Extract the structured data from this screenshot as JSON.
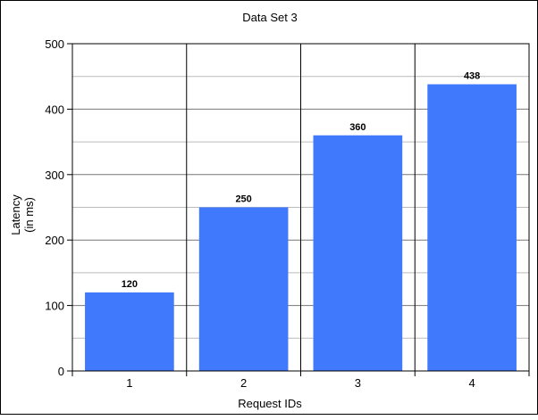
{
  "chart_data": {
    "type": "bar",
    "title": "Data Set 3",
    "xlabel": "Request IDs",
    "ylabel_lines": [
      "Latency",
      "(in ms)"
    ],
    "categories": [
      "1",
      "2",
      "3",
      "4"
    ],
    "values": [
      120,
      250,
      360,
      438
    ],
    "data_labels": [
      "120",
      "250",
      "360",
      "438"
    ],
    "ylim": [
      0,
      500
    ],
    "yticks": [
      0,
      100,
      200,
      300,
      400,
      500
    ],
    "grid": true,
    "bar_color": "#4079fb"
  }
}
